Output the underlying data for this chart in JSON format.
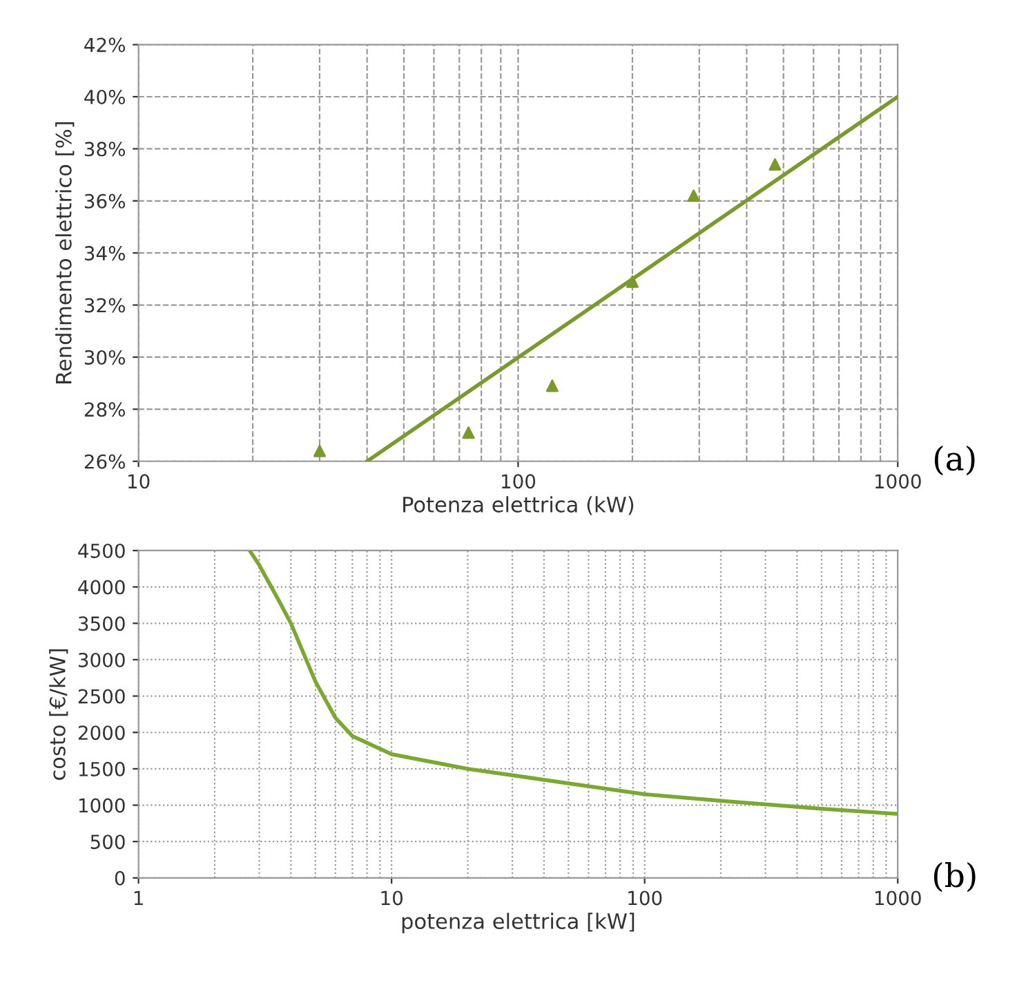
{
  "chart_data": [
    {
      "type": "scatter",
      "ylabel": "Rendimento elettrico [%]",
      "xlabel": "Potenza elettrica (kW)",
      "annotations": [
        "(a)"
      ],
      "log": "x",
      "grid": true,
      "xlim": [
        10,
        1000
      ],
      "xticks": [
        10,
        100,
        1000
      ],
      "ylim": [
        26,
        42
      ],
      "yticks": [
        {
          "value": 26,
          "label": "26%"
        },
        {
          "value": 28,
          "label": "28%"
        },
        {
          "value": 30,
          "label": "30%"
        },
        {
          "value": 32,
          "label": "32%"
        },
        {
          "value": 34,
          "label": "34%"
        },
        {
          "value": 36,
          "label": "36%"
        },
        {
          "value": 38,
          "label": "38%"
        },
        {
          "value": 40,
          "label": "40%"
        },
        {
          "value": 42,
          "label": "42%"
        }
      ],
      "series": [
        {
          "marker": "triangle",
          "color": "#7a9a2e",
          "x": [
            30,
            74,
            123,
            200,
            290,
            475
          ],
          "values": [
            26.4,
            27.1,
            28.9,
            32.9,
            36.2,
            37.4
          ]
        },
        {
          "type": "line",
          "marker": "none",
          "color": "#7a9a2e",
          "x": [
            40,
            1000
          ],
          "values": [
            26,
            40
          ]
        }
      ]
    },
    {
      "type": "line",
      "ylabel": "costo [€/kW]",
      "xlabel": "potenza elettrica [kW]",
      "annotations": [
        "(b)"
      ],
      "log": "x",
      "grid": true,
      "xlim": [
        1,
        1000
      ],
      "xticks": [
        1,
        10,
        100,
        1000
      ],
      "ylim": [
        0,
        4500
      ],
      "yticks": [
        0,
        500,
        1000,
        1500,
        2000,
        2500,
        3000,
        3500,
        4000,
        4500
      ],
      "series": [
        {
          "marker": "none",
          "color": "#7aa832",
          "x": [
            2.75,
            3,
            3.6,
            4,
            5,
            6,
            7,
            10,
            20,
            50,
            100,
            200,
            500,
            1000
          ],
          "values": [
            4500,
            4300,
            3800,
            3500,
            2700,
            2200,
            1950,
            1700,
            1500,
            1300,
            1150,
            1060,
            950,
            880
          ]
        }
      ]
    }
  ]
}
